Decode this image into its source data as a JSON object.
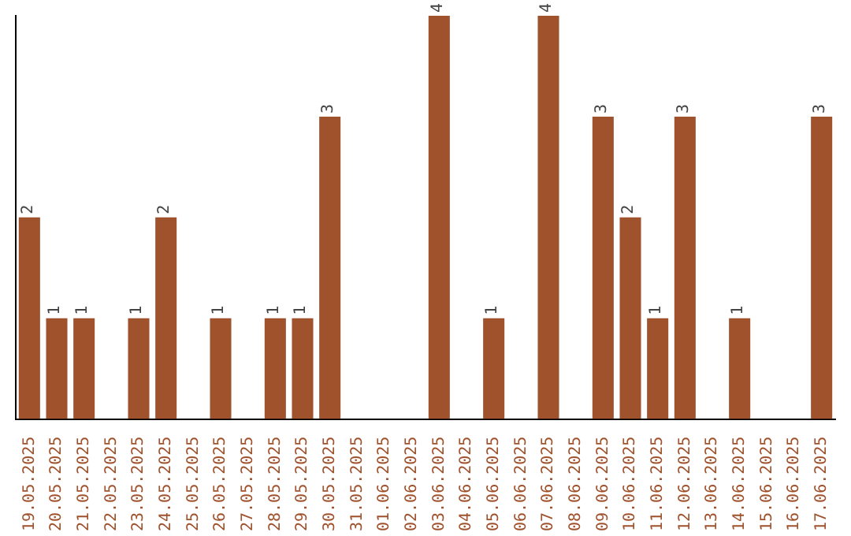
{
  "chart_data": {
    "type": "bar",
    "categories": [
      "19.05.2025",
      "20.05.2025",
      "21.05.2025",
      "22.05.2025",
      "23.05.2025",
      "24.05.2025",
      "25.05.2025",
      "26.05.2025",
      "27.05.2025",
      "28.05.2025",
      "29.05.2025",
      "30.05.2025",
      "31.05.2025",
      "01.06.2025",
      "02.06.2025",
      "03.06.2025",
      "04.06.2025",
      "05.06.2025",
      "06.06.2025",
      "07.06.2025",
      "08.06.2025",
      "09.06.2025",
      "10.06.2025",
      "11.06.2025",
      "12.06.2025",
      "13.06.2025",
      "14.06.2025",
      "15.06.2025",
      "16.06.2025",
      "17.06.2025"
    ],
    "values": [
      2,
      1,
      1,
      0,
      1,
      2,
      0,
      1,
      0,
      1,
      1,
      3,
      0,
      0,
      0,
      4,
      0,
      1,
      0,
      4,
      0,
      3,
      2,
      1,
      3,
      0,
      1,
      0,
      0,
      3
    ],
    "value_labels": [
      "2",
      "1",
      "1",
      null,
      "1",
      "2",
      null,
      "1",
      null,
      "1",
      "1",
      "3",
      null,
      null,
      null,
      "4",
      null,
      "1",
      null,
      "4",
      null,
      "3",
      "2",
      "1",
      "3",
      null,
      "1",
      null,
      null,
      "3"
    ],
    "color": "#a0522d",
    "grid": false,
    "legend": false,
    "tick_labels": "x"
  }
}
